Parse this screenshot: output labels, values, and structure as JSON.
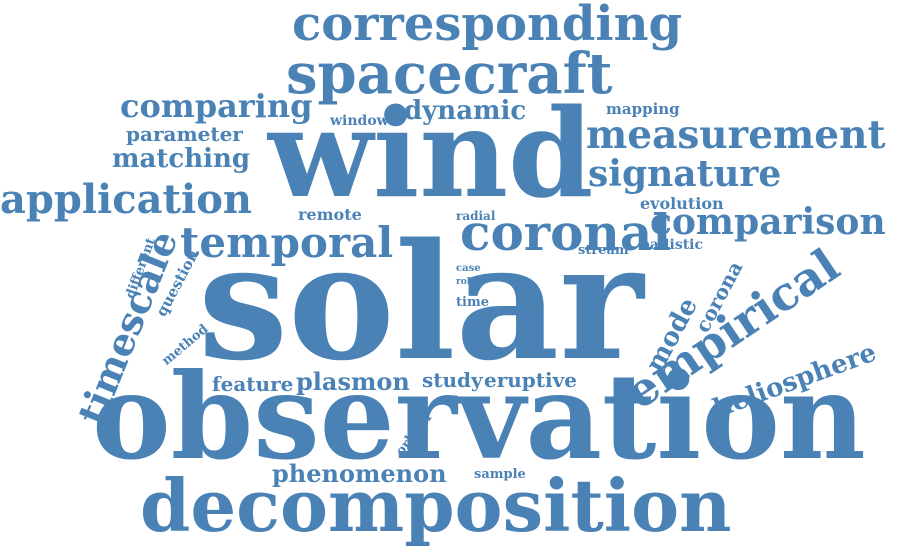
{
  "color": "#4a82b6",
  "words": {
    "solar": "solar",
    "wind": "wind",
    "observation": "observation",
    "decomposition": "decomposition",
    "corresponding": "corresponding",
    "spacecraft": "spacecraft",
    "application": "application",
    "measurement": "measurement",
    "empirical": "empirical",
    "coronal": "coronal",
    "temporal": "temporal",
    "comparison": "comparison",
    "signature": "signature",
    "timescale": "timescale",
    "comparing": "comparing",
    "heliosphere": "heliosphere",
    "phenomenon": "phenomenon",
    "plasmon": "plasmon",
    "matching": "matching",
    "dynamic": "dynamic",
    "parameter": "parameter",
    "mode": "mode",
    "feature": "feature",
    "study": "study",
    "eruptive": "eruptive",
    "corona": "corona",
    "evolution": "evolution",
    "mapping": "mapping",
    "remote": "remote",
    "ballistic": "ballistic",
    "stream": "stream",
    "question": "question",
    "different": "different",
    "method": "method",
    "orbiter": "orbiter",
    "sample": "sample",
    "window": "window",
    "radial": "radial",
    "time": "time",
    "case": "case",
    "role": "role"
  }
}
